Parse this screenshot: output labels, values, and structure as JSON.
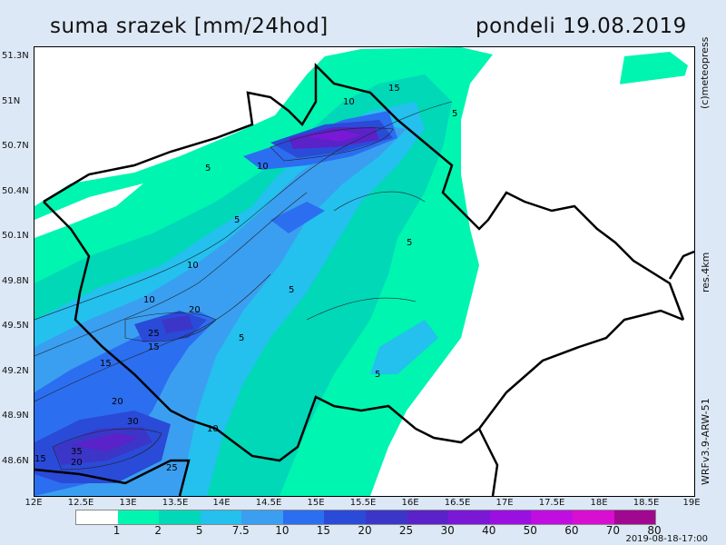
{
  "header": {
    "title": "suma srazek [mm/24hod]",
    "date": "pondeli 19.08.2019"
  },
  "side_labels": {
    "copyright": "(c)meteopress",
    "resolution": "res.4km",
    "model": "WRFv3.9-ARW-51"
  },
  "timestamp": "2019-08-18-17:00",
  "map": {
    "lat_labels": [
      "51.3N",
      "51N",
      "50.7N",
      "50.4N",
      "50.1N",
      "49.8N",
      "49.5N",
      "49.2N",
      "48.9N",
      "48.6N"
    ],
    "lon_labels": [
      "12E",
      "12.5E",
      "13E",
      "13.5E",
      "14E",
      "14.5E",
      "15E",
      "15.5E",
      "16E",
      "16.5E",
      "17E",
      "17.5E",
      "18E",
      "18.5E",
      "19E"
    ],
    "contour_labels": [
      "5",
      "10",
      "15",
      "20",
      "25",
      "30",
      "35",
      "40"
    ]
  },
  "legend": {
    "values": [
      "1",
      "2",
      "5",
      "7.5",
      "10",
      "15",
      "20",
      "25",
      "30",
      "40",
      "50",
      "60",
      "70",
      "80"
    ],
    "colors": [
      "#ffffff",
      "#00f5b0",
      "#00d8b8",
      "#24c0ee",
      "#3a9ff0",
      "#2c6ef0",
      "#2a4ad8",
      "#3b36c8",
      "#5a22c8",
      "#7a18d6",
      "#9a10e0",
      "#c00ee0",
      "#d80ed0",
      "#a00890"
    ]
  }
}
